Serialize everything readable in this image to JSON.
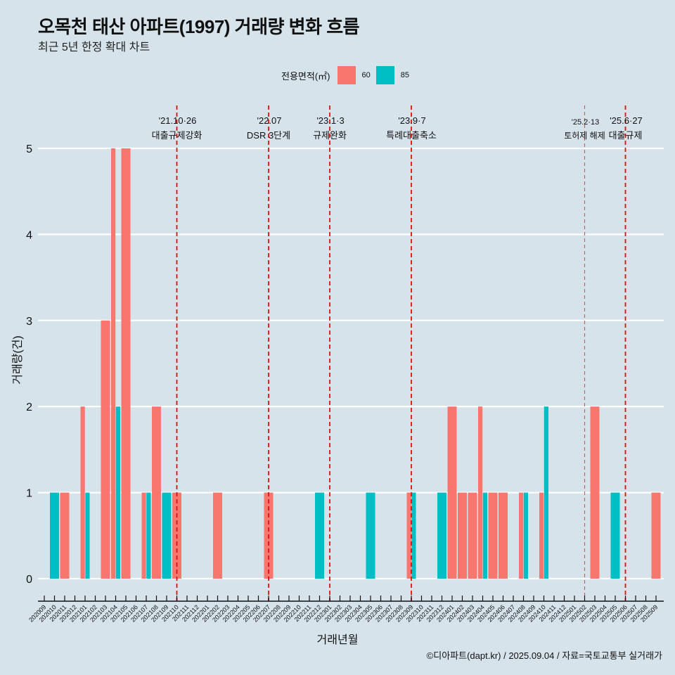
{
  "title": "오목천 태산 아파트(1997) 거래량 변화 흐름",
  "subtitle": "최근 5년 한정 확대 차트",
  "caption": "©디아파트(dapt.kr) / 2025.09.04 / 자료=국토교통부 실거래가",
  "legend": {
    "title": "전용면적(㎡)",
    "items": [
      {
        "label": "60",
        "color": "#f8766d"
      },
      {
        "label": "85",
        "color": "#00bfc4"
      }
    ]
  },
  "chart_data": {
    "type": "bar",
    "title": "오목천 태산 아파트(1997) 거래량 변화 흐름",
    "subtitle": "최근 5년 한정 확대 차트",
    "xlabel": "거래년월",
    "ylabel": "거래량(건)",
    "ylim": [
      0,
      5
    ],
    "yticks": [
      0,
      1,
      2,
      3,
      4,
      5
    ],
    "grid": "horizontal",
    "legend_position": "top",
    "categories": [
      "202009",
      "202010",
      "202011",
      "202012",
      "202101",
      "202102",
      "202103",
      "202104",
      "202105",
      "202106",
      "202107",
      "202108",
      "202109",
      "202110",
      "202111",
      "202112",
      "202201",
      "202202",
      "202203",
      "202204",
      "202205",
      "202206",
      "202207",
      "202208",
      "202209",
      "202210",
      "202211",
      "202212",
      "202301",
      "202302",
      "202303",
      "202304",
      "202305",
      "202306",
      "202307",
      "202308",
      "202309",
      "202310",
      "202311",
      "202312",
      "202401",
      "202402",
      "202403",
      "202404",
      "202405",
      "202406",
      "202407",
      "202408",
      "202409",
      "202410",
      "202411",
      "202412",
      "202501",
      "202502",
      "202503",
      "202504",
      "202505",
      "202506",
      "202507",
      "202508",
      "202509"
    ],
    "series": [
      {
        "name": "60",
        "color": "#f8766d",
        "values": {
          "202011": 1,
          "202101": 2,
          "202103": 3,
          "202104": 5,
          "202105": 5,
          "202107": 1,
          "202108": 2,
          "202110": 1,
          "202202": 1,
          "202207": 1,
          "202309": 1,
          "202401": 2,
          "202402": 1,
          "202403": 1,
          "202404": 2,
          "202405": 1,
          "202406": 1,
          "202408": 1,
          "202410": 1,
          "202503": 2,
          "202509": 1
        }
      },
      {
        "name": "85",
        "color": "#00bfc4",
        "values": {
          "202010": 1,
          "202101": 1,
          "202104": 2,
          "202107": 1,
          "202109": 1,
          "202212": 1,
          "202305": 1,
          "202309": 1,
          "202312": 1,
          "202404": 1,
          "202408": 1,
          "202410": 2,
          "202505": 1
        }
      }
    ],
    "annotations": [
      {
        "x": "202110",
        "date": "'21.10·26",
        "label": "대출규제강화",
        "style": "dashed"
      },
      {
        "x": "202207",
        "date": "'22.07",
        "label": "DSR 3단계",
        "style": "dashed"
      },
      {
        "x": "202301",
        "date": "'23.1·3",
        "label": "규제완화",
        "style": "dashed"
      },
      {
        "x": "202309",
        "date": "'23.9·7",
        "label": "특례대출축소",
        "style": "dashed"
      },
      {
        "x": "202502",
        "date": "'25.2·13",
        "label": "토허제 해제",
        "style": "thin-dashed"
      },
      {
        "x": "202506",
        "date": "'25.6·27",
        "label": "대출규제",
        "style": "dashed"
      }
    ]
  }
}
